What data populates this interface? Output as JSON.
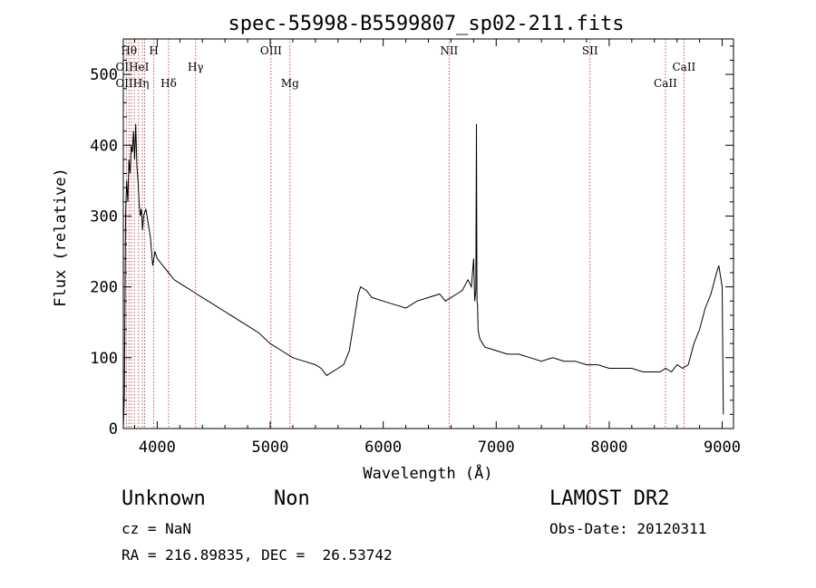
{
  "chart_data": {
    "type": "line",
    "title": "spec-55998-B5599807_sp02-211.fits",
    "xlabel": "Wavelength (Å)",
    "ylabel": "Flux (relative)",
    "xlim": [
      3700,
      9100
    ],
    "ylim": [
      0,
      550
    ],
    "xticks": [
      "4000",
      "5000",
      "6000",
      "7000",
      "8000",
      "9000"
    ],
    "yticks": [
      "0",
      "100",
      "200",
      "300",
      "400",
      "500"
    ],
    "grid": false,
    "series": [
      {
        "x": [
          3700,
          3710,
          3720,
          3730,
          3740,
          3750,
          3760,
          3770,
          3780,
          3790,
          3800,
          3810,
          3820,
          3830,
          3840,
          3850,
          3860,
          3870,
          3880,
          3900,
          3920,
          3940,
          3960,
          3980,
          4000,
          4050,
          4100,
          4150,
          4200,
          4250,
          4300,
          4350,
          4400,
          4450,
          4500,
          4600,
          4700,
          4800,
          4900,
          5000,
          5100,
          5200,
          5300,
          5400,
          5450,
          5500,
          5600,
          5650,
          5700,
          5720,
          5750,
          5780,
          5800,
          5850,
          5900,
          6000,
          6100,
          6200,
          6300,
          6400,
          6500,
          6550,
          6600,
          6650,
          6700,
          6750,
          6780,
          6800,
          6810,
          6820,
          6825,
          6830,
          6835,
          6840,
          6850,
          6860,
          6880,
          6900,
          7000,
          7100,
          7200,
          7300,
          7400,
          7500,
          7600,
          7700,
          7800,
          7900,
          8000,
          8100,
          8200,
          8300,
          8400,
          8450,
          8500,
          8550,
          8600,
          8650,
          8700,
          8750,
          8800,
          8850,
          8900,
          8950,
          8970,
          9000,
          9010
        ],
        "values": [
          0,
          50,
          300,
          350,
          320,
          380,
          360,
          400,
          390,
          420,
          380,
          430,
          370,
          350,
          320,
          300,
          310,
          280,
          300,
          310,
          290,
          270,
          230,
          250,
          240,
          230,
          220,
          210,
          205,
          200,
          195,
          190,
          185,
          180,
          175,
          165,
          155,
          145,
          135,
          120,
          110,
          100,
          95,
          90,
          85,
          75,
          85,
          90,
          110,
          130,
          160,
          190,
          200,
          195,
          185,
          180,
          175,
          170,
          180,
          185,
          190,
          180,
          185,
          190,
          195,
          210,
          200,
          240,
          180,
          195,
          430,
          180,
          175,
          140,
          130,
          125,
          120,
          115,
          110,
          105,
          105,
          100,
          95,
          100,
          95,
          95,
          90,
          90,
          85,
          85,
          85,
          80,
          80,
          80,
          85,
          80,
          90,
          85,
          90,
          120,
          140,
          170,
          190,
          220,
          230,
          200,
          20
        ]
      }
    ],
    "annotations": {
      "top_row": [
        "Hθ",
        "H",
        "OIII",
        "NII",
        "SII"
      ],
      "mid_row": [
        "OIHeI",
        "Hγ",
        "CaII"
      ],
      "low_row": [
        "OIIHη",
        "Hδ",
        "Mg",
        "CaII"
      ]
    },
    "line_markers_x": [
      3727,
      3750,
      3771,
      3797,
      3835,
      3869,
      3889,
      3970,
      4101,
      4340,
      5007,
      5175,
      6583,
      7830,
      8498,
      8662
    ]
  },
  "captions": {
    "object_name": "Unknown",
    "object_class": "Non",
    "survey": "LAMOST DR2",
    "redshift": "cz = NaN",
    "obs_date": "Obs-Date: 20120311",
    "coords": "RA = 216.89835, DEC =  26.53742"
  }
}
